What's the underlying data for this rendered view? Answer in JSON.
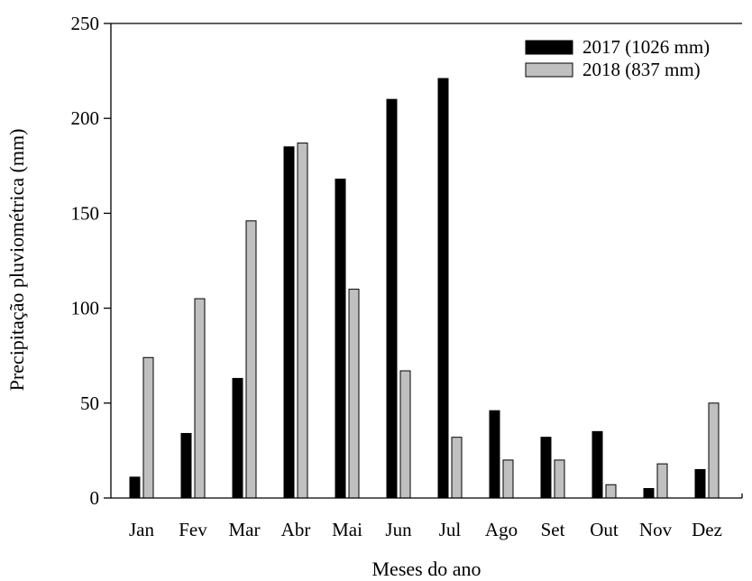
{
  "chart_data": {
    "type": "bar",
    "title": "",
    "xlabel": "Meses do ano",
    "ylabel": "Precipitação pluviométrica (mm)",
    "ylim": [
      0,
      250
    ],
    "yticks": [
      0,
      50,
      100,
      150,
      200,
      250
    ],
    "grid": false,
    "legend_position": "top-right",
    "categories": [
      "Jan",
      "Fev",
      "Mar",
      "Abr",
      "Mai",
      "Jun",
      "Jul",
      "Ago",
      "Set",
      "Out",
      "Nov",
      "Dez"
    ],
    "series": [
      {
        "name": "2017 (1026 mm)",
        "color": "#000000",
        "values": [
          11,
          34,
          63,
          185,
          168,
          210,
          221,
          46,
          32,
          35,
          5,
          15
        ]
      },
      {
        "name": "2018 (837 mm)",
        "color": "#c0c0c0",
        "values": [
          74,
          105,
          146,
          187,
          110,
          67,
          32,
          20,
          20,
          7,
          18,
          50
        ]
      }
    ]
  }
}
